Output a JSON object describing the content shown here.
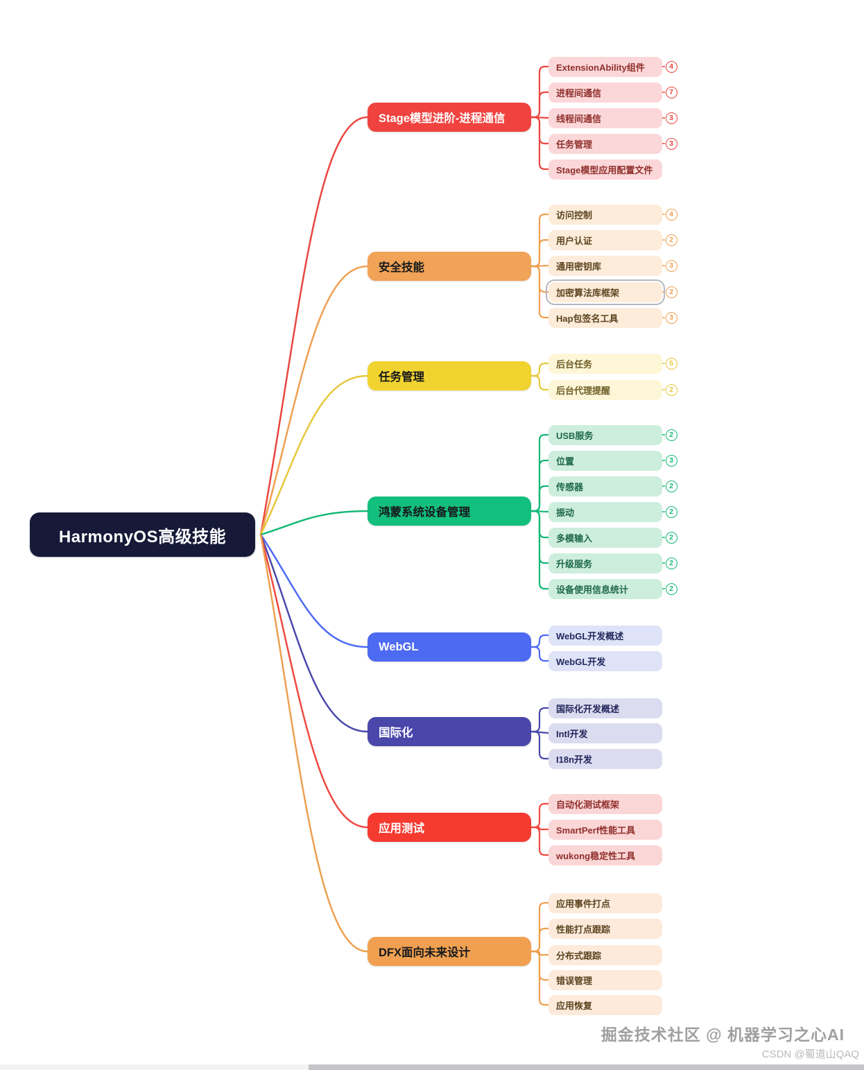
{
  "root": {
    "label": "HarmonyOS高级技能",
    "bg": "#161a38",
    "fg": "#ffffff"
  },
  "branches": [
    {
      "label": "Stage模型进阶-进程通信",
      "node_bg": "#f0433f",
      "node_fg": "#ffffff",
      "edge": "#e9463f",
      "child_bg": "#fbd7d9",
      "child_fg": "#8f2f2c",
      "children": [
        {
          "label": "ExtensionAbility组件",
          "badge": "4"
        },
        {
          "label": "进程间通信",
          "badge": "7"
        },
        {
          "label": "线程间通信",
          "badge": "3"
        },
        {
          "label": "任务管理",
          "badge": "3"
        },
        {
          "label": "Stage模型应用配置文件",
          "badge": null
        }
      ]
    },
    {
      "label": "安全技能",
      "node_bg": "#f1a357",
      "node_fg": "#17191c",
      "edge": "#efa051",
      "child_bg": "#fdecd9",
      "child_fg": "#5c4420",
      "children": [
        {
          "label": "访问控制",
          "badge": "4"
        },
        {
          "label": "用户认证",
          "badge": "2"
        },
        {
          "label": "通用密钥库",
          "badge": "3"
        },
        {
          "label": "加密算法库框架",
          "badge": "2",
          "selected": true
        },
        {
          "label": "Hap包签名工具",
          "badge": "3"
        }
      ]
    },
    {
      "label": "任务管理",
      "node_bg": "#f1d32f",
      "node_fg": "#17191c",
      "edge": "#e5c83b",
      "child_bg": "#fdf7d8",
      "child_fg": "#6e5e28",
      "children": [
        {
          "label": "后台任务",
          "badge": "5"
        },
        {
          "label": "后台代理提醒",
          "badge": "2"
        }
      ]
    },
    {
      "label": "鸿蒙系统设备管理",
      "node_bg": "#12bf7d",
      "node_fg": "#17191c",
      "edge": "#14b877",
      "child_bg": "#cdeedd",
      "child_fg": "#1f684a",
      "children": [
        {
          "label": "USB服务",
          "badge": "2"
        },
        {
          "label": "位置",
          "badge": "3"
        },
        {
          "label": "传感器",
          "badge": "2"
        },
        {
          "label": "振动",
          "badge": "2"
        },
        {
          "label": "多模输入",
          "badge": "2"
        },
        {
          "label": "升级服务",
          "badge": "2"
        },
        {
          "label": "设备使用信息统计",
          "badge": "2"
        }
      ]
    },
    {
      "label": "WebGL",
      "node_bg": "#4d6af2",
      "node_fg": "#ffffff",
      "edge": "#4d6af2",
      "child_bg": "#dfe3f8",
      "child_fg": "#1f285c",
      "children": [
        {
          "label": "WebGL开发概述",
          "badge": null
        },
        {
          "label": "WebGL开发",
          "badge": null
        }
      ]
    },
    {
      "label": "国际化",
      "node_bg": "#4a47ab",
      "node_fg": "#ffffff",
      "edge": "#4a47ab",
      "child_bg": "#dbdcf0",
      "child_fg": "#23265c",
      "children": [
        {
          "label": "国际化开发概述",
          "badge": null
        },
        {
          "label": "Intl开发",
          "badge": null
        },
        {
          "label": "I18n开发",
          "badge": null
        }
      ]
    },
    {
      "label": "应用测试",
      "node_bg": "#f53a30",
      "node_fg": "#ffffff",
      "edge": "#ef4a41",
      "child_bg": "#fbd6d6",
      "child_fg": "#8f2f2c",
      "children": [
        {
          "label": "自动化测试框架",
          "badge": null
        },
        {
          "label": "SmartPerf性能工具",
          "badge": null
        },
        {
          "label": "wukong稳定性工具",
          "badge": null
        }
      ]
    },
    {
      "label": "DFX面向未来设计",
      "node_bg": "#f0a050",
      "node_fg": "#17191c",
      "edge": "#eda04f",
      "child_bg": "#fdeadb",
      "child_fg": "#5c4420",
      "children": [
        {
          "label": "应用事件打点",
          "badge": null
        },
        {
          "label": "性能打点跟踪",
          "badge": null
        },
        {
          "label": "分布式跟踪",
          "badge": null
        },
        {
          "label": "错误管理",
          "badge": null
        },
        {
          "label": "应用恢复",
          "badge": null
        }
      ]
    }
  ],
  "watermarks": {
    "primary": "掘金技术社区 @ 机器学习之心AI",
    "secondary": "CSDN @蜀道山QAQ"
  }
}
